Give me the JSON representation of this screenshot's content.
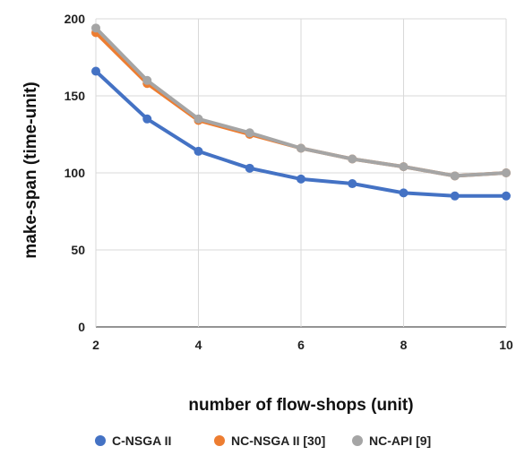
{
  "chart_data": {
    "type": "line",
    "xlabel": "number of flow-shops (unit)",
    "ylabel": "make-span (time-unit)",
    "x": [
      2,
      3,
      4,
      5,
      6,
      7,
      8,
      9,
      10
    ],
    "xlim": [
      2,
      10
    ],
    "xticks": [
      "2",
      "4",
      "6",
      "8",
      "10"
    ],
    "xtick_values": [
      2,
      4,
      6,
      8,
      10
    ],
    "ylim": [
      0,
      200
    ],
    "yticks": [
      "0",
      "50",
      "100",
      "150",
      "200"
    ],
    "ytick_values": [
      0,
      50,
      100,
      150,
      200
    ],
    "grid": true,
    "legend_position": "bottom",
    "series": [
      {
        "name": "C-NSGA II",
        "color": "#4472c4",
        "values": [
          166,
          135,
          114,
          103,
          96,
          93,
          87,
          85,
          85
        ]
      },
      {
        "name": "NC-NSGA II [30]",
        "color": "#ed7d31",
        "values": [
          191,
          158,
          134,
          125,
          116,
          109,
          104,
          98,
          100
        ]
      },
      {
        "name": "NC-API [9]",
        "color": "#a5a5a5",
        "values": [
          194,
          160,
          135,
          126,
          116,
          109,
          104,
          98,
          100
        ]
      }
    ]
  }
}
